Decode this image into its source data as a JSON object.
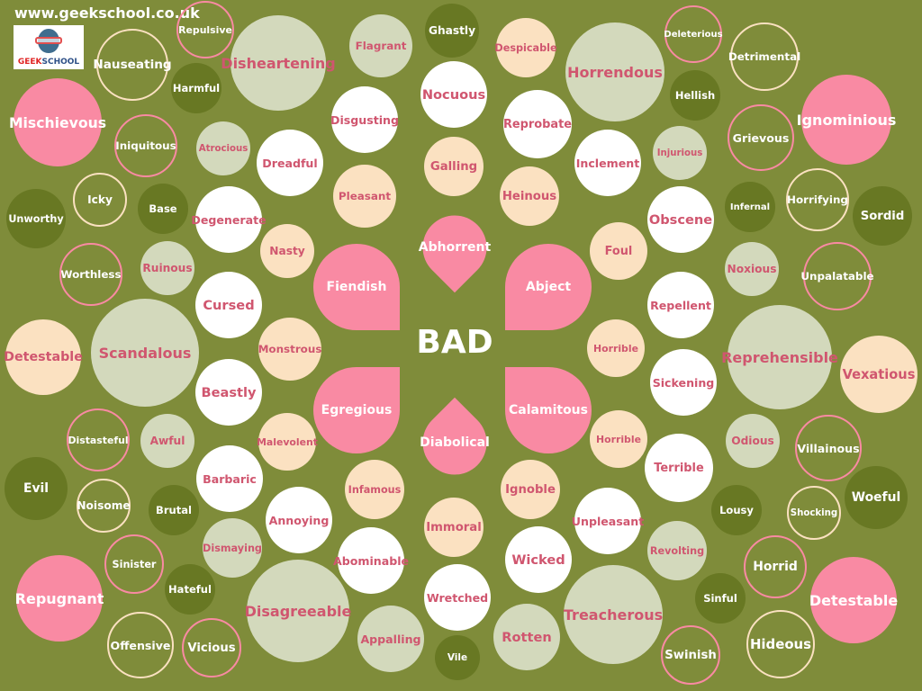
{
  "header": {
    "website": "www.geekschool.co.uk",
    "logo_text": "GEEKSCHOOL"
  },
  "colors": {
    "background": "#7f8c3a",
    "pink": "#f98aa3",
    "cream": "#fbe1c1",
    "sage": "#d3d9bc",
    "dark": "#687823",
    "white": "#ffffff",
    "pink_text": "#d0566f"
  },
  "center_word": "BAD",
  "petals": [
    "Abhorrent",
    "Fiendish",
    "Abject",
    "Egregious",
    "Calamitous",
    "Diabolical"
  ],
  "words": [
    {
      "text": "Repulsive",
      "style": "pinkring"
    },
    {
      "text": "Nauseating",
      "style": "creamring"
    },
    {
      "text": "Harmful",
      "style": "dark"
    },
    {
      "text": "Disheartening",
      "style": "sage"
    },
    {
      "text": "Mischievous",
      "style": "pink"
    },
    {
      "text": "Iniquitous",
      "style": "pinkring"
    },
    {
      "text": "Atrocious",
      "style": "sage"
    },
    {
      "text": "Flagrant",
      "style": "sage"
    },
    {
      "text": "Ghastly",
      "style": "dark"
    },
    {
      "text": "Nocuous",
      "style": "white"
    },
    {
      "text": "Disgusting",
      "style": "white"
    },
    {
      "text": "Dreadful",
      "style": "white"
    },
    {
      "text": "Galling",
      "style": "cream"
    },
    {
      "text": "Pleasant",
      "style": "cream"
    },
    {
      "text": "Despicable",
      "style": "cream"
    },
    {
      "text": "Reprobate",
      "style": "white"
    },
    {
      "text": "Horrendous",
      "style": "sage"
    },
    {
      "text": "Deleterious",
      "style": "pinkring"
    },
    {
      "text": "Hellish",
      "style": "dark"
    },
    {
      "text": "Detrimental",
      "style": "creamring"
    },
    {
      "text": "Ignominious",
      "style": "pink"
    },
    {
      "text": "Grievous",
      "style": "pinkring"
    },
    {
      "text": "Injurious",
      "style": "sage"
    },
    {
      "text": "Inclement",
      "style": "white"
    },
    {
      "text": "Heinous",
      "style": "cream"
    },
    {
      "text": "Icky",
      "style": "creamring"
    },
    {
      "text": "Base",
      "style": "dark"
    },
    {
      "text": "Unworthy",
      "style": "dark"
    },
    {
      "text": "Degenerate",
      "style": "white"
    },
    {
      "text": "Nasty",
      "style": "cream"
    },
    {
      "text": "Foul",
      "style": "cream"
    },
    {
      "text": "Obscene",
      "style": "white"
    },
    {
      "text": "Infernal",
      "style": "dark"
    },
    {
      "text": "Horrifying",
      "style": "creamring"
    },
    {
      "text": "Sordid",
      "style": "dark"
    },
    {
      "text": "Noxious",
      "style": "sage"
    },
    {
      "text": "Unpalatable",
      "style": "pinkring"
    },
    {
      "text": "Worthless",
      "style": "pinkring"
    },
    {
      "text": "Ruinous",
      "style": "sage"
    },
    {
      "text": "Cursed",
      "style": "white"
    },
    {
      "text": "Repellent",
      "style": "white"
    },
    {
      "text": "Scandalous",
      "style": "sage"
    },
    {
      "text": "Detestable",
      "style": "cream"
    },
    {
      "text": "Monstrous",
      "style": "cream"
    },
    {
      "text": "Horrible",
      "style": "cream"
    },
    {
      "text": "Reprehensible",
      "style": "sage"
    },
    {
      "text": "Vexatious",
      "style": "cream"
    },
    {
      "text": "Beastly",
      "style": "white"
    },
    {
      "text": "Sickening",
      "style": "white"
    },
    {
      "text": "Distasteful",
      "style": "pinkring"
    },
    {
      "text": "Awful",
      "style": "sage"
    },
    {
      "text": "Malevolent",
      "style": "cream"
    },
    {
      "text": "Horrible",
      "style": "cream"
    },
    {
      "text": "Odious",
      "style": "sage"
    },
    {
      "text": "Villainous",
      "style": "pinkring"
    },
    {
      "text": "Terrible",
      "style": "white"
    },
    {
      "text": "Barbaric",
      "style": "white"
    },
    {
      "text": "Evil",
      "style": "dark"
    },
    {
      "text": "Noisome",
      "style": "creamring"
    },
    {
      "text": "Brutal",
      "style": "dark"
    },
    {
      "text": "Infamous",
      "style": "cream"
    },
    {
      "text": "Ignoble",
      "style": "cream"
    },
    {
      "text": "Annoying",
      "style": "white"
    },
    {
      "text": "Immoral",
      "style": "cream"
    },
    {
      "text": "Unpleasant",
      "style": "white"
    },
    {
      "text": "Lousy",
      "style": "dark"
    },
    {
      "text": "Shocking",
      "style": "creamring"
    },
    {
      "text": "Woeful",
      "style": "dark"
    },
    {
      "text": "Dismaying",
      "style": "sage"
    },
    {
      "text": "Abominable",
      "style": "white"
    },
    {
      "text": "Wicked",
      "style": "white"
    },
    {
      "text": "Revolting",
      "style": "sage"
    },
    {
      "text": "Sinister",
      "style": "pinkring"
    },
    {
      "text": "Hateful",
      "style": "dark"
    },
    {
      "text": "Repugnant",
      "style": "pink"
    },
    {
      "text": "Disagreeable",
      "style": "sage"
    },
    {
      "text": "Wretched",
      "style": "white"
    },
    {
      "text": "Treacherous",
      "style": "sage"
    },
    {
      "text": "Horrid",
      "style": "pinkring"
    },
    {
      "text": "Sinful",
      "style": "dark"
    },
    {
      "text": "Detestable",
      "style": "pink"
    },
    {
      "text": "Appalling",
      "style": "sage"
    },
    {
      "text": "Rotten",
      "style": "sage"
    },
    {
      "text": "Vile",
      "style": "dark"
    },
    {
      "text": "Offensive",
      "style": "creamring"
    },
    {
      "text": "Vicious",
      "style": "pinkring"
    },
    {
      "text": "Swinish",
      "style": "pinkring"
    },
    {
      "text": "Hideous",
      "style": "creamring"
    }
  ]
}
